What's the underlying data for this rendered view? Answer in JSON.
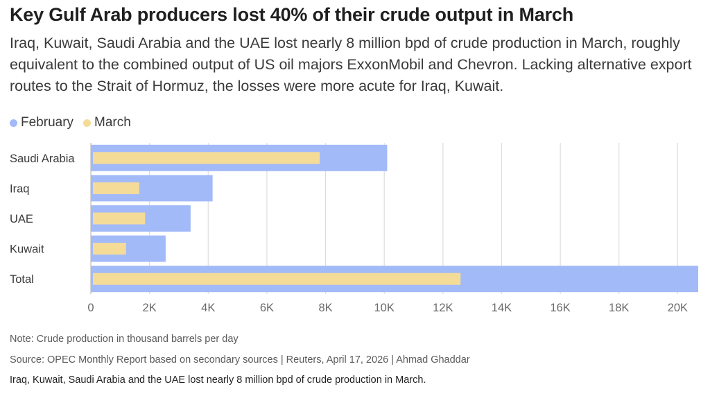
{
  "title": "Key Gulf Arab producers lost 40% of their crude output in March",
  "subtitle": "Iraq, Kuwait, Saudi Arabia and the UAE lost nearly 8 million bpd of crude production in March, roughly equivalent to the combined output of US oil majors ExxonMobil and Chevron. Lacking alternative export routes to the Strait of Hormuz, the losses were more acute for Iraq, Kuwait.",
  "note": "Note: Crude production in thousand barrels per day",
  "source": "Source: OPEC Monthly Report based on secondary sources | Reuters, April 17, 2026 | Ahmad Ghaddar",
  "caption": "Iraq, Kuwait, Saudi Arabia and the UAE lost nearly 8 million bpd of crude production in March.",
  "colors": {
    "february": "#a3baf9",
    "march": "#f4dc98",
    "grid": "#dddddd",
    "axis": "#bbbbbb"
  },
  "chart_data": {
    "type": "bar",
    "orientation": "horizontal",
    "categories": [
      "Saudi Arabia",
      "Iraq",
      "UAE",
      "Kuwait",
      "Total"
    ],
    "series": [
      {
        "name": "February",
        "values": [
          10100,
          4150,
          3400,
          2550,
          20700
        ]
      },
      {
        "name": "March",
        "values": [
          7800,
          1650,
          1850,
          1200,
          12600
        ]
      }
    ],
    "xlim": [
      0,
      20700
    ],
    "xticks": [
      0,
      2000,
      4000,
      6000,
      8000,
      10000,
      12000,
      14000,
      16000,
      18000,
      20000
    ],
    "xtick_labels": [
      "0",
      "2K",
      "4K",
      "6K",
      "8K",
      "10K",
      "12K",
      "14K",
      "16K",
      "18K",
      "20K"
    ],
    "grid": true,
    "legend_position": "top-left"
  }
}
